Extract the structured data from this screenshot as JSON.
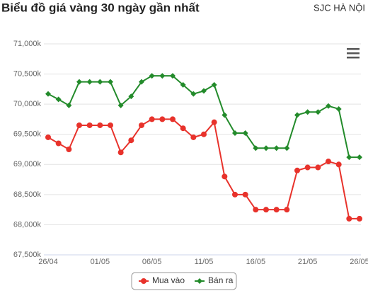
{
  "chart_data": {
    "type": "line",
    "title": "Biểu đồ giá vàng 30 ngày gần nhất",
    "subtitle": "SJC HÀ NỘI",
    "categories": [
      "26/04",
      null,
      null,
      null,
      null,
      "01/05",
      null,
      null,
      null,
      null,
      "06/05",
      null,
      null,
      null,
      null,
      "11/05",
      null,
      null,
      null,
      null,
      "16/05",
      null,
      null,
      null,
      null,
      "21/05",
      null,
      null,
      null,
      null,
      "26/05"
    ],
    "series": [
      {
        "name": "Mua vào",
        "color": "#e8322b",
        "marker": "circle",
        "values": [
          69450,
          69350,
          69250,
          69650,
          69650,
          69650,
          69650,
          69200,
          69400,
          69650,
          69750,
          69750,
          69750,
          69600,
          69450,
          69500,
          69700,
          68800,
          68500,
          68500,
          68250,
          68250,
          68250,
          68250,
          68900,
          68950,
          68950,
          69050,
          69000,
          68100,
          68100
        ]
      },
      {
        "name": "Bán ra",
        "color": "#238b2b",
        "marker": "diamond",
        "values": [
          70170,
          70080,
          69980,
          70370,
          70370,
          70370,
          70370,
          69980,
          70130,
          70370,
          70470,
          70470,
          70470,
          70320,
          70170,
          70220,
          70320,
          69820,
          69520,
          69520,
          69270,
          69270,
          69270,
          69270,
          69820,
          69870,
          69870,
          69970,
          69920,
          69120,
          69120
        ]
      }
    ],
    "ylim": [
      67500,
      71000
    ],
    "yticks": [
      {
        "value": 67500,
        "label": "67,500k"
      },
      {
        "value": 68000,
        "label": "68,000k"
      },
      {
        "value": 68500,
        "label": "68,500k"
      },
      {
        "value": 69000,
        "label": "69,000k"
      },
      {
        "value": 69500,
        "label": "69,500k"
      },
      {
        "value": 70000,
        "label": "70,000k"
      },
      {
        "value": 70500,
        "label": "70,500k"
      },
      {
        "value": 71000,
        "label": "71,000k"
      }
    ],
    "grid": true,
    "legend": "bottom"
  }
}
